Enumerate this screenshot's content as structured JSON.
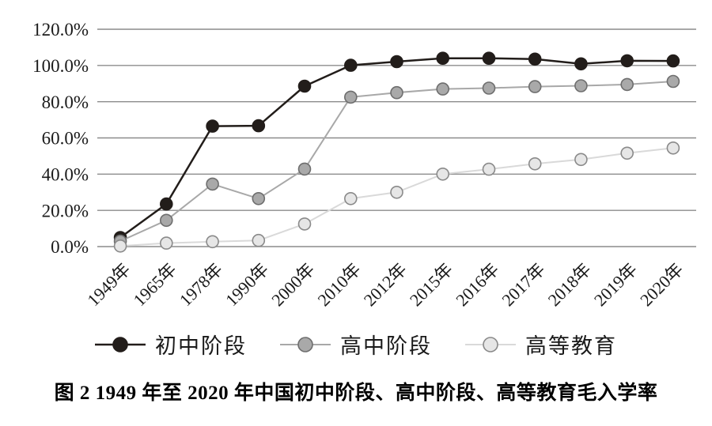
{
  "figure": {
    "caption": "图 2  1949 年至 2020 年中国初中阶段、高中阶段、高等教育毛入学率"
  },
  "chart_data": {
    "type": "line",
    "title": "",
    "xlabel": "",
    "ylabel": "",
    "categories": [
      "1949年",
      "1965年",
      "1978年",
      "1990年",
      "2000年",
      "2010年",
      "2012年",
      "2015年",
      "2016年",
      "2017年",
      "2018年",
      "2019年",
      "2020年"
    ],
    "series": [
      {
        "name": "初中阶段",
        "values": [
          5.0,
          23.5,
          66.5,
          66.7,
          88.6,
          100.1,
          102.1,
          104.0,
          104.0,
          103.5,
          100.9,
          102.6,
          102.5
        ],
        "line_color": "#221d1a",
        "line_width": 2.5,
        "marker_fill": "#221d1a",
        "marker_stroke": "#221d1a"
      },
      {
        "name": "高中阶段",
        "values": [
          3.0,
          14.5,
          34.5,
          26.5,
          42.8,
          82.5,
          85.0,
          87.0,
          87.5,
          88.3,
          88.8,
          89.5,
          91.2
        ],
        "line_color": "#a8a8a8",
        "line_width": 2,
        "marker_fill": "#a9a9a9",
        "marker_stroke": "#6e6e6e"
      },
      {
        "name": "高等教育",
        "values": [
          0.3,
          1.9,
          2.7,
          3.4,
          12.5,
          26.5,
          30.0,
          40.0,
          42.7,
          45.7,
          48.1,
          51.6,
          54.4
        ],
        "line_color": "#d9d9d9",
        "line_width": 2,
        "marker_fill": "#e6e6e6",
        "marker_stroke": "#8a8a8a"
      }
    ],
    "ylim": [
      0,
      120
    ],
    "yticks": [
      0,
      20,
      40,
      60,
      80,
      100,
      120
    ],
    "ytick_labels": [
      "0.0%",
      "20.0%",
      "40.0%",
      "60.0%",
      "80.0%",
      "100.0%",
      "120.0%"
    ],
    "grid": true,
    "grid_color": "#8c8c8c",
    "legend_position": "bottom"
  }
}
